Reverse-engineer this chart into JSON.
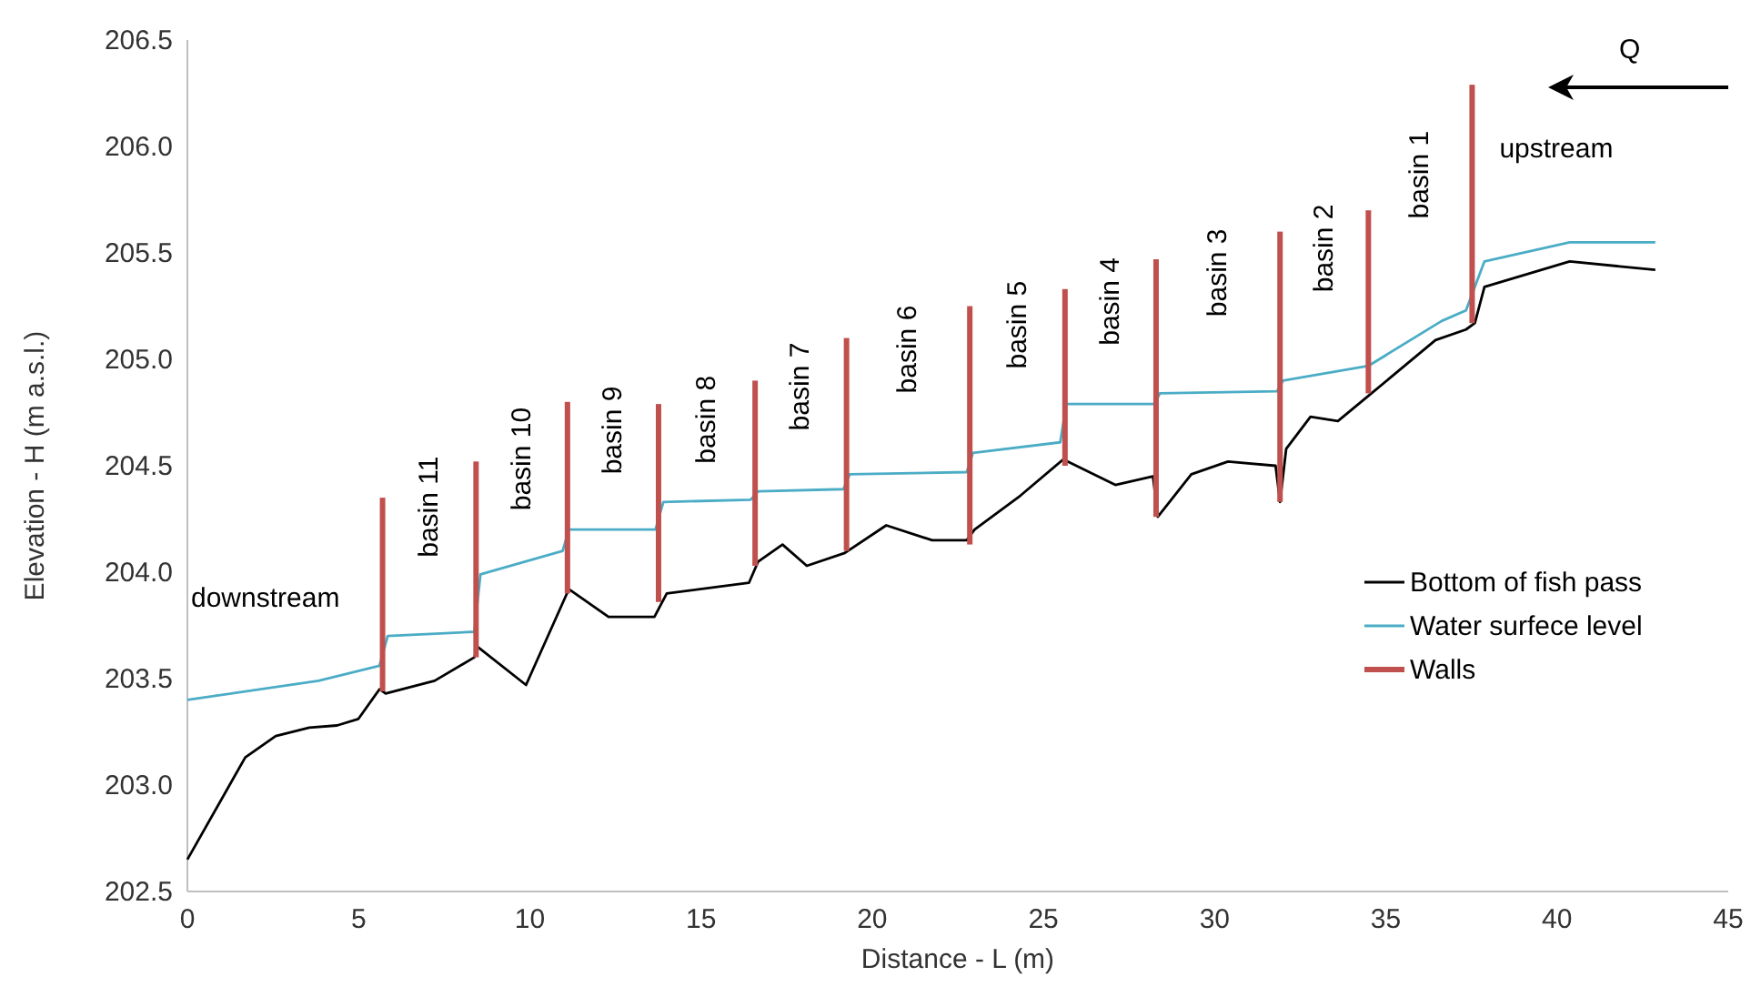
{
  "chart_data": {
    "type": "line",
    "xlabel": "Distance - L (m)",
    "ylabel": "Elevation - H (m a.s.l.)",
    "xlim": [
      0,
      45
    ],
    "xticks": [
      0,
      5,
      10,
      15,
      20,
      25,
      30,
      35,
      40,
      45
    ],
    "ylim": [
      202.5,
      206.5
    ],
    "yticks": [
      202.5,
      {
        "value": 203,
        "label": "203.0"
      },
      203.5,
      {
        "value": 204,
        "label": "204.0"
      },
      204.5,
      {
        "value": 205,
        "label": "205.0"
      },
      205.5,
      {
        "value": 206,
        "label": "206.0"
      },
      206.5
    ],
    "grid": false,
    "legend": "bottom right",
    "marker": "none",
    "line_style": "solid",
    "series": [
      {
        "name": "Bottom of fish pass",
        "color": "#000000",
        "x": [
          0,
          1.69,
          2.58,
          3.56,
          4.37,
          4.99,
          5.61,
          5.79,
          7.22,
          8.38,
          8.47,
          9.89,
          11.14,
          12.3,
          13.64,
          14.0,
          16.4,
          16.67,
          17.38,
          18.09,
          19.2,
          20.41,
          21.75,
          22.76,
          22.99,
          24.33,
          25.58,
          27.1,
          28.2,
          28.34,
          29.32,
          30.39,
          31.78,
          31.91,
          32.09,
          32.8,
          33.6,
          34.58,
          36.45,
          37.34,
          37.6,
          37.88,
          40.37,
          42.87
        ],
        "values": [
          202.65,
          203.13,
          203.23,
          203.27,
          203.28,
          203.31,
          203.45,
          203.43,
          203.49,
          203.6,
          203.65,
          203.47,
          203.92,
          203.79,
          203.79,
          203.9,
          203.95,
          204.05,
          204.13,
          204.03,
          204.09,
          204.22,
          204.15,
          204.15,
          204.2,
          204.36,
          204.53,
          204.41,
          204.45,
          204.26,
          204.46,
          204.52,
          204.5,
          204.33,
          204.58,
          204.73,
          204.71,
          204.84,
          205.09,
          205.14,
          205.17,
          205.34,
          205.46,
          205.42
        ]
      },
      {
        "name": "Water surfece level",
        "color": "#4bacc6",
        "x": [
          0,
          3.83,
          5.61,
          5.85,
          8.38,
          8.56,
          10.96,
          11.14,
          13.67,
          13.9,
          16.45,
          16.67,
          19.16,
          19.34,
          22.76,
          22.94,
          25.49,
          25.67,
          28.25,
          28.4,
          31.82,
          32.0,
          34.5,
          36.63,
          37.34,
          37.88,
          40.37,
          42.87
        ],
        "values": [
          203.4,
          203.49,
          203.56,
          203.7,
          203.72,
          203.99,
          204.1,
          204.2,
          204.2,
          204.33,
          204.34,
          204.38,
          204.39,
          204.46,
          204.47,
          204.56,
          204.61,
          204.79,
          204.79,
          204.84,
          204.85,
          204.9,
          204.97,
          205.18,
          205.23,
          205.46,
          205.55,
          205.55
        ]
      },
      {
        "name": "Walls",
        "type": "bar",
        "color": "#c0504d",
        "x": [
          5.7,
          8.43,
          11.1,
          13.76,
          16.58,
          19.25,
          22.85,
          25.63,
          28.29,
          31.91,
          34.49,
          37.52
        ],
        "base": [
          203.44,
          203.6,
          203.9,
          203.86,
          204.03,
          204.1,
          204.13,
          204.5,
          204.26,
          204.33,
          204.84,
          205.17
        ],
        "values": [
          0.91,
          0.92,
          0.9,
          0.93,
          0.87,
          1.0,
          1.12,
          0.83,
          1.21,
          1.27,
          0.86,
          1.12
        ]
      }
    ],
    "annotations": [
      "downstream",
      "basin 11",
      "basin 10",
      "basin 9",
      "basin 8",
      "basin 7",
      "basin 6",
      "basin 5",
      "basin 4",
      "basin 3",
      "basin 2",
      "basin 1",
      "upstream",
      "Q"
    ]
  }
}
